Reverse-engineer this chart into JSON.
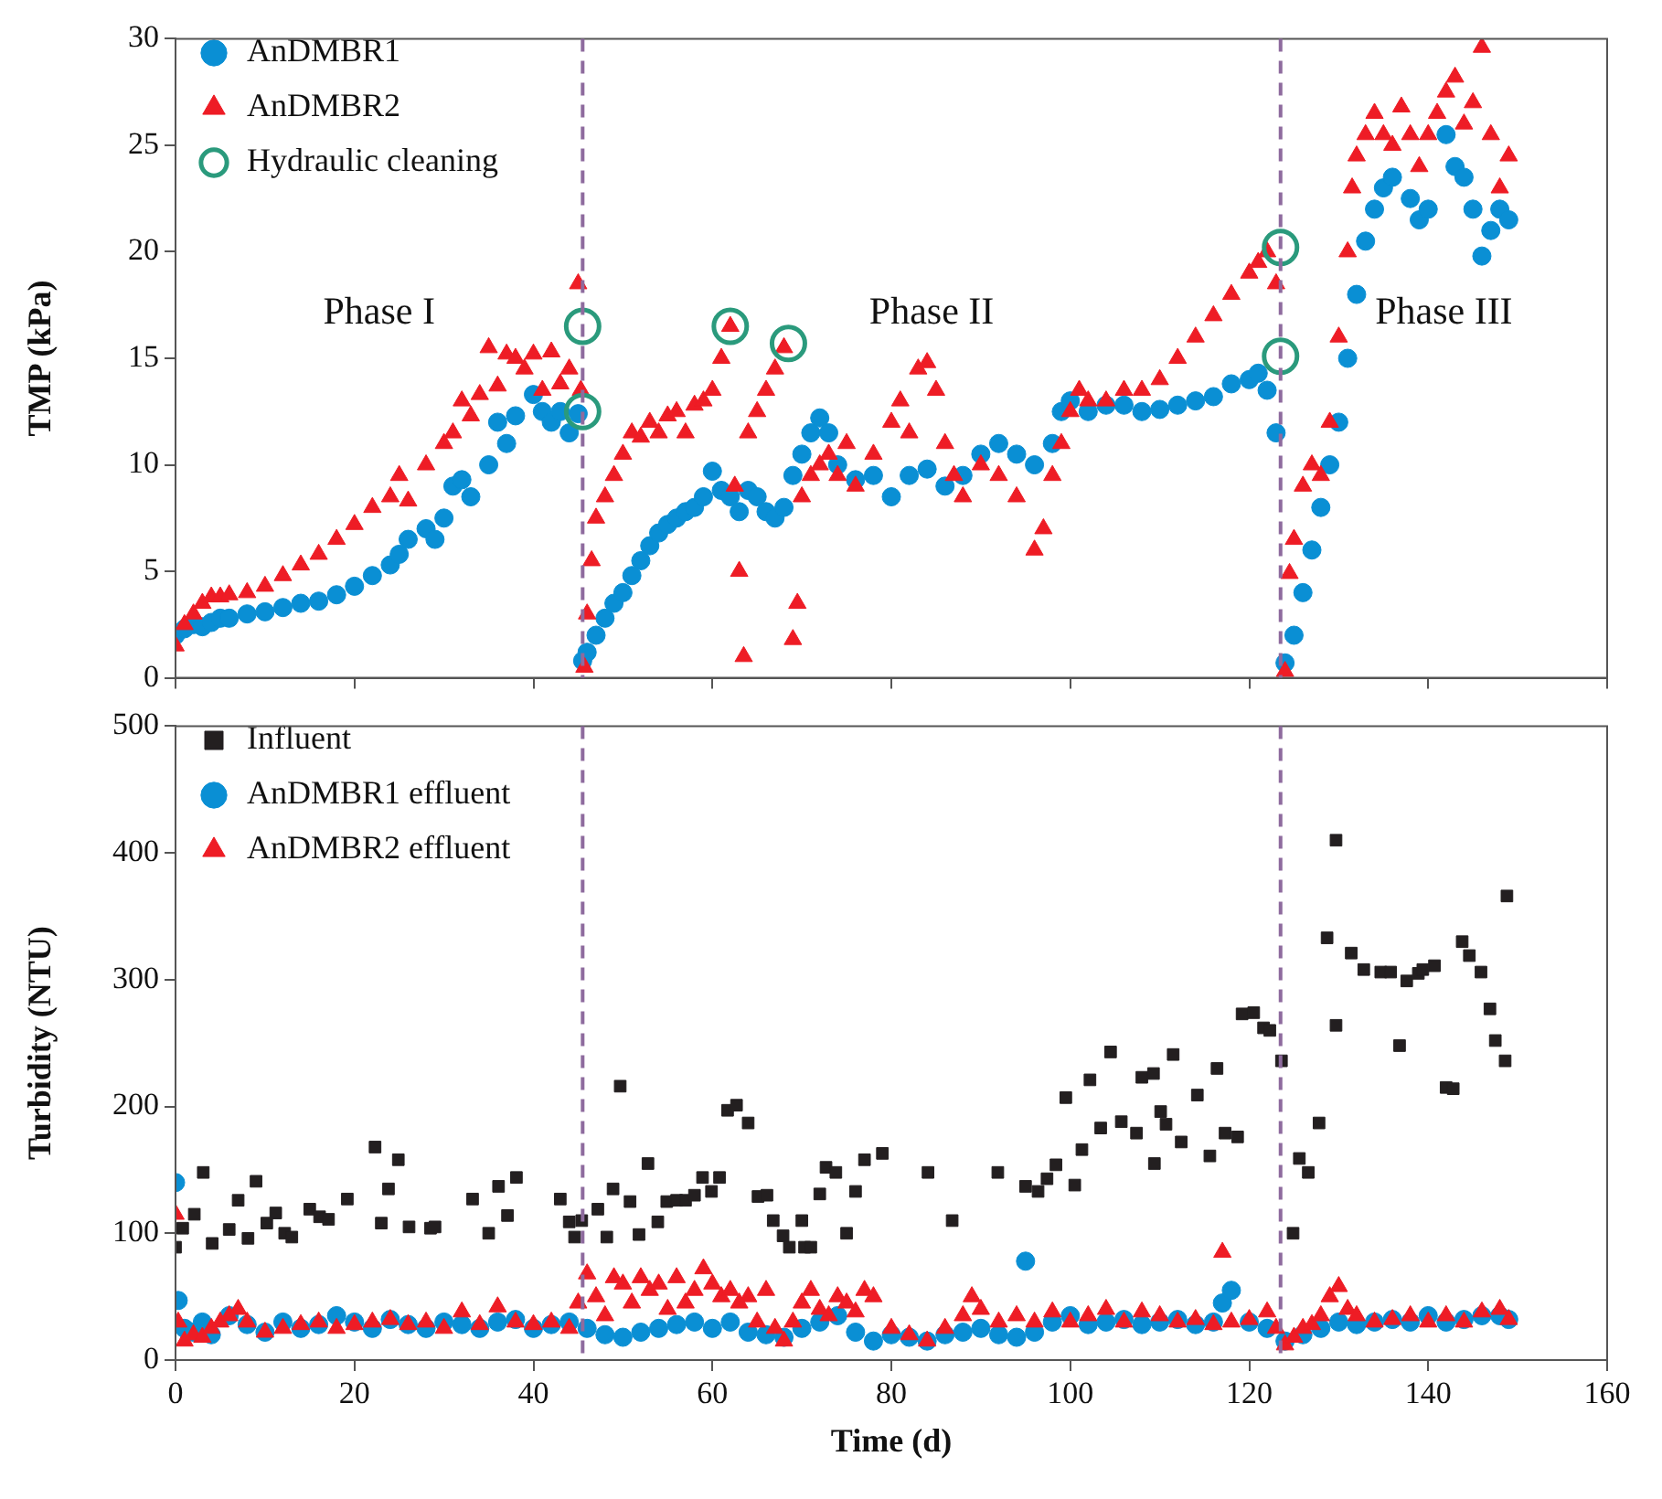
{
  "chart_data": [
    {
      "type": "scatter",
      "ylabel": "TMP (kPa)",
      "xlim": [
        0,
        160
      ],
      "xticks": [
        0,
        20,
        40,
        60,
        80,
        100,
        120,
        140,
        160
      ],
      "ylim": [
        0,
        30
      ],
      "yticks": [
        0,
        5,
        10,
        15,
        20,
        25,
        30
      ],
      "tick_labels": "y",
      "grid": false,
      "legend": "top left",
      "annotations": [
        "Phase I",
        "Phase II",
        "Phase III"
      ],
      "ref_lines": [
        {
          "axis": "x",
          "value": 45.5,
          "color": "#8e6b9e",
          "line_style": "dashed"
        },
        {
          "axis": "x",
          "value": 123.5,
          "color": "#8e6b9e",
          "line_style": "dashed"
        }
      ],
      "series": [
        {
          "name": "AnDMBR1",
          "color": "#0a8fd4",
          "marker": "circle",
          "x": [
            0,
            1,
            2,
            3,
            4,
            5,
            6,
            8,
            10,
            12,
            14,
            16,
            18,
            20,
            22,
            24,
            25,
            26,
            28,
            29,
            30,
            31,
            32,
            33,
            35,
            36,
            37,
            38,
            40,
            41,
            42,
            43,
            44,
            45,
            45.5,
            46,
            47,
            48,
            49,
            50,
            51,
            52,
            53,
            54,
            55,
            56,
            57,
            58,
            59,
            60,
            61,
            62,
            63,
            64,
            65,
            66,
            67,
            68,
            69,
            70,
            71,
            72,
            73,
            74,
            76,
            78,
            80,
            82,
            84,
            86,
            88,
            90,
            92,
            94,
            96,
            98,
            99,
            100,
            102,
            104,
            106,
            108,
            110,
            112,
            114,
            116,
            118,
            120,
            121,
            122,
            123,
            124,
            125,
            126,
            127,
            128,
            129,
            130,
            131,
            132,
            133,
            134,
            135,
            136,
            138,
            139,
            140,
            142,
            143,
            144,
            145,
            146,
            147,
            148,
            149
          ],
          "values": [
            2,
            2.3,
            2.5,
            2.4,
            2.6,
            2.8,
            2.8,
            3,
            3.1,
            3.3,
            3.5,
            3.6,
            3.9,
            4.3,
            4.8,
            5.3,
            5.8,
            6.5,
            7,
            6.5,
            7.5,
            9,
            9.3,
            8.5,
            10,
            12,
            11,
            12.3,
            13.3,
            12.5,
            12,
            12.5,
            11.5,
            12.4,
            0.8,
            1.2,
            2,
            2.8,
            3.5,
            4,
            4.8,
            5.5,
            6.2,
            6.8,
            7.2,
            7.5,
            7.8,
            8,
            8.5,
            9.7,
            8.8,
            8.5,
            7.8,
            8.8,
            8.5,
            7.8,
            7.5,
            8,
            9.5,
            10.5,
            11.5,
            12.2,
            11.5,
            10,
            9.3,
            9.5,
            8.5,
            9.5,
            9.8,
            9,
            9.5,
            10.5,
            11,
            10.5,
            10,
            11,
            12.5,
            13,
            12.5,
            12.8,
            12.8,
            12.5,
            12.6,
            12.8,
            13,
            13.2,
            13.8,
            14,
            14.3,
            13.5,
            11.5,
            0.7,
            2,
            4,
            6,
            8,
            10,
            12,
            15,
            18,
            20.5,
            22,
            23,
            23.5,
            22.5,
            21.5,
            22,
            25.5,
            24,
            23.5,
            22,
            19.8,
            21,
            22,
            21.5
          ]
        },
        {
          "name": "AnDMBR2",
          "color": "#ee1c25",
          "marker": "triangle",
          "x": [
            0,
            1,
            2,
            3,
            4,
            5,
            6,
            8,
            10,
            12,
            14,
            16,
            18,
            20,
            22,
            24,
            25,
            26,
            28,
            30,
            31,
            32,
            33,
            34,
            35,
            36,
            37,
            38,
            39,
            40,
            41,
            42,
            43,
            44,
            45,
            45.3,
            45.7,
            46,
            46.5,
            47,
            48,
            49,
            50,
            51,
            52,
            53,
            54,
            55,
            56,
            57,
            58,
            59,
            60,
            61,
            62,
            62.5,
            63,
            63.5,
            64,
            65,
            66,
            67,
            68,
            69,
            69.5,
            70,
            71,
            72,
            73,
            74,
            75,
            76,
            78,
            80,
            81,
            82,
            83,
            84,
            85,
            86,
            87,
            88,
            90,
            92,
            94,
            96,
            97,
            98,
            99,
            100,
            101,
            102,
            104,
            106,
            108,
            110,
            112,
            114,
            116,
            118,
            120,
            121,
            122,
            123,
            124,
            124.5,
            125,
            126,
            127,
            128,
            129,
            130,
            131,
            131.5,
            132,
            133,
            134,
            135,
            136,
            137,
            138,
            139,
            140,
            141,
            142,
            143,
            144,
            145,
            146,
            147,
            148,
            149
          ],
          "values": [
            1.5,
            2.5,
            3,
            3.5,
            3.8,
            3.8,
            3.9,
            4,
            4.3,
            4.8,
            5.3,
            5.8,
            6.5,
            7.2,
            8,
            8.5,
            9.5,
            8.3,
            10,
            11,
            11.5,
            13,
            12.3,
            13.3,
            15.5,
            13.7,
            15.2,
            15,
            14.5,
            15.2,
            13.5,
            15.3,
            13.8,
            14.5,
            18.5,
            13.5,
            0.5,
            3,
            5.5,
            7.5,
            8.5,
            9.5,
            10.5,
            11.5,
            11.3,
            12,
            11.5,
            12.3,
            12.5,
            11.5,
            12.8,
            13,
            13.5,
            15,
            16.5,
            9,
            5,
            1,
            11.5,
            12.5,
            13.5,
            14.5,
            15.5,
            1.8,
            3.5,
            8.5,
            9.5,
            10,
            10.5,
            9.5,
            11,
            9,
            10.5,
            12,
            13,
            11.5,
            14.5,
            14.8,
            13.5,
            11,
            9.5,
            8.5,
            10,
            9.5,
            8.5,
            6,
            7,
            9.5,
            11,
            12.5,
            13.5,
            13,
            13,
            13.5,
            13.5,
            14,
            15,
            16,
            17,
            18,
            19,
            19.5,
            20,
            18.5,
            0.3,
            4.9,
            6.5,
            9,
            10,
            9.5,
            12,
            16,
            20,
            23,
            24.5,
            25.5,
            26.5,
            25.5,
            25,
            26.8,
            25.5,
            24,
            25.5,
            26.5,
            27.5,
            28.2,
            26,
            27,
            29.6,
            25.5,
            23,
            24.5
          ]
        },
        {
          "name": "Hydraulic cleaning",
          "color": "#2a9a7c",
          "marker": "circle",
          "x": [
            45.5,
            45.5,
            62,
            68.5,
            123.5,
            123.5
          ],
          "values": [
            16.5,
            12.5,
            16.5,
            15.7,
            20.2,
            15.1
          ]
        }
      ]
    },
    {
      "type": "scatter",
      "xlabel": "Time (d)",
      "ylabel": "Turbidity (NTU)",
      "xlim": [
        0,
        160
      ],
      "xticks": [
        0,
        20,
        40,
        60,
        80,
        100,
        120,
        140,
        160
      ],
      "ylim": [
        0,
        500
      ],
      "yticks": [
        0,
        100,
        200,
        300,
        400,
        500
      ],
      "grid": false,
      "legend": "top left",
      "ref_lines": [
        {
          "axis": "x",
          "value": 45.5,
          "color": "#8e6b9e",
          "line_style": "dashed"
        },
        {
          "axis": "x",
          "value": 123.5,
          "color": "#8e6b9e",
          "line_style": "dashed"
        }
      ],
      "series": [
        {
          "name": "Influent",
          "color": "#231f20",
          "marker": "square",
          "x": [
            0,
            0.8,
            2.1,
            3.1,
            4.1,
            6,
            7,
            8.1,
            9,
            10.2,
            11.2,
            12.2,
            13,
            15,
            16.1,
            17.1,
            19.2,
            22.3,
            23,
            23.8,
            24.9,
            26.1,
            28.5,
            29,
            33.2,
            35,
            36.1,
            37.1,
            38.1,
            43,
            44,
            44.6,
            45.4,
            47.2,
            48.2,
            48.9,
            49.7,
            50.8,
            51.8,
            52.8,
            53.9,
            54.9,
            56,
            57,
            58,
            58.9,
            59.9,
            60.8,
            61.7,
            62.7,
            64,
            65.1,
            66.1,
            66.8,
            67.9,
            68.6,
            70,
            70.3,
            71,
            72,
            72.7,
            73.8,
            75,
            76,
            77,
            79,
            84.1,
            86.8,
            91.9,
            95,
            96.4,
            97.4,
            98.4,
            99.5,
            100.5,
            101.3,
            102.2,
            103.4,
            104.5,
            105.7,
            107.4,
            108,
            109.3,
            109.4,
            110.1,
            110.7,
            111.5,
            112.4,
            114.2,
            115.6,
            116.4,
            117.3,
            118.7,
            119.2,
            120.5,
            121.6,
            122.3,
            123.6,
            124.9,
            125.6,
            126.6,
            127.8,
            128.7,
            129.7,
            129.7,
            131.4,
            132.8,
            134.7,
            135.8,
            136.8,
            137.6,
            138.9,
            139.4,
            140.7,
            142,
            142.8,
            143.8,
            144.6,
            145.9,
            146.9,
            147.5,
            148.6,
            148.8
          ],
          "values": [
            89,
            104,
            115,
            148,
            92,
            103,
            126,
            96,
            141,
            108,
            116,
            100,
            97,
            119,
            113,
            111,
            127,
            168,
            108,
            135,
            158,
            105,
            104,
            105,
            127,
            100,
            137,
            114,
            144,
            127,
            109,
            97,
            110,
            119,
            97,
            135,
            216,
            125,
            99,
            155,
            109,
            125,
            126,
            126,
            130,
            144,
            133,
            144,
            197,
            201,
            187,
            129,
            130,
            110,
            98,
            89,
            110,
            89,
            89,
            131,
            152,
            148,
            100,
            133,
            158,
            163,
            148,
            110,
            148,
            137,
            133,
            143,
            154,
            207,
            138,
            166,
            221,
            183,
            243,
            188,
            179,
            223,
            226,
            155,
            196,
            186,
            241,
            172,
            209,
            161,
            230,
            179,
            176,
            273,
            274,
            262,
            260,
            236,
            100,
            159,
            148,
            187,
            333,
            410,
            264,
            321,
            308,
            306,
            306,
            248,
            299,
            305,
            308,
            311,
            215,
            214,
            330,
            319,
            306,
            277,
            252,
            236,
            366
          ]
        },
        {
          "name": "AnDMBR1 effluent",
          "color": "#0a8fd4",
          "marker": "circle",
          "x": [
            0,
            0.3,
            1,
            2,
            3,
            4,
            6,
            8,
            10,
            12,
            14,
            16,
            18,
            20,
            22,
            24,
            26,
            28,
            30,
            32,
            34,
            36,
            38,
            40,
            42,
            44,
            46,
            48,
            50,
            52,
            54,
            56,
            58,
            60,
            62,
            64,
            66,
            68,
            70,
            72,
            74,
            76,
            78,
            80,
            82,
            84,
            86,
            88,
            90,
            92,
            94,
            95,
            96,
            98,
            100,
            102,
            104,
            106,
            108,
            110,
            112,
            114,
            116,
            117,
            118,
            120,
            122,
            124,
            126,
            128,
            130,
            132,
            134,
            136,
            138,
            140,
            142,
            144,
            146,
            148,
            149
          ],
          "values": [
            140,
            47,
            25,
            22,
            30,
            20,
            35,
            28,
            22,
            30,
            25,
            28,
            35,
            30,
            25,
            32,
            28,
            25,
            30,
            28,
            25,
            30,
            32,
            25,
            28,
            30,
            25,
            20,
            18,
            22,
            25,
            28,
            30,
            25,
            30,
            22,
            20,
            18,
            25,
            30,
            35,
            22,
            15,
            20,
            18,
            15,
            20,
            22,
            25,
            20,
            18,
            78,
            22,
            30,
            35,
            28,
            30,
            32,
            28,
            30,
            32,
            28,
            30,
            45,
            55,
            30,
            25,
            15,
            20,
            25,
            30,
            28,
            30,
            32,
            30,
            35,
            30,
            32,
            35,
            35,
            32
          ]
        },
        {
          "name": "AnDMBR2 effluent",
          "color": "#ee1c25",
          "marker": "triangle",
          "x": [
            0,
            0.3,
            1,
            2,
            3,
            4,
            5,
            6,
            7,
            8,
            10,
            12,
            14,
            16,
            18,
            20,
            22,
            24,
            26,
            28,
            30,
            32,
            34,
            36,
            38,
            40,
            42,
            44,
            45,
            46,
            47,
            48,
            49,
            50,
            51,
            52,
            53,
            54,
            55,
            56,
            57,
            58,
            59,
            60,
            61,
            62,
            63,
            64,
            65,
            66,
            67,
            68,
            69,
            70,
            71,
            72,
            73,
            74,
            75,
            76,
            77,
            78,
            80,
            82,
            84,
            86,
            88,
            89,
            90,
            92,
            94,
            96,
            98,
            100,
            102,
            104,
            106,
            108,
            110,
            112,
            114,
            116,
            117,
            118,
            120,
            122,
            123,
            124,
            125,
            126,
            127,
            128,
            129,
            130,
            131,
            132,
            134,
            136,
            138,
            140,
            142,
            144,
            146,
            148,
            149
          ],
          "values": [
            115,
            30,
            15,
            20,
            18,
            25,
            30,
            35,
            40,
            30,
            22,
            25,
            28,
            30,
            25,
            28,
            30,
            32,
            28,
            30,
            25,
            38,
            28,
            42,
            30,
            28,
            30,
            25,
            45,
            68,
            50,
            35,
            65,
            60,
            45,
            65,
            55,
            60,
            40,
            65,
            45,
            55,
            72,
            60,
            50,
            55,
            45,
            50,
            30,
            55,
            25,
            15,
            30,
            45,
            55,
            40,
            35,
            50,
            45,
            38,
            55,
            50,
            25,
            20,
            15,
            25,
            35,
            50,
            40,
            30,
            35,
            30,
            38,
            30,
            35,
            40,
            30,
            38,
            35,
            30,
            32,
            28,
            85,
            30,
            32,
            38,
            25,
            12,
            18,
            25,
            28,
            35,
            50,
            58,
            40,
            35,
            30,
            32,
            35,
            30,
            35,
            30,
            38,
            40,
            32
          ]
        }
      ]
    }
  ]
}
